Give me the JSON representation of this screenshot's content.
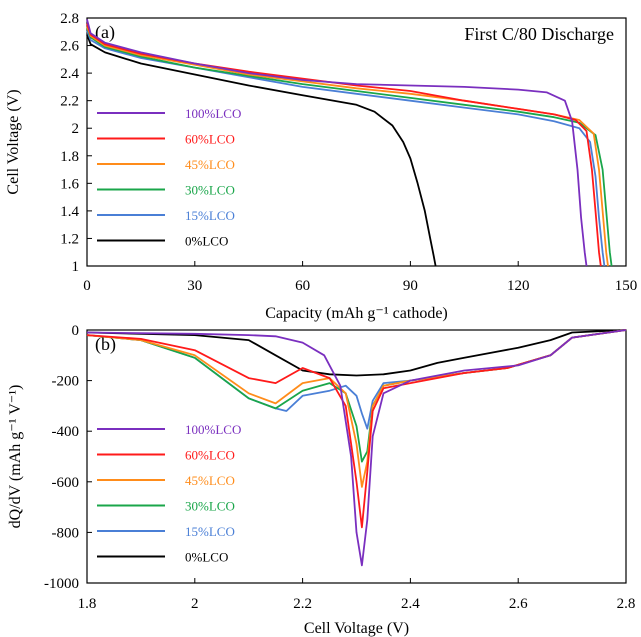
{
  "colors": {
    "100%LCO": "#7a2fbf",
    "60%LCO": "#ff1a1a",
    "45%LCO": "#ff8c1a",
    "30%LCO": "#1aa64a",
    "15%LCO": "#4a7fd6",
    "0%LCO": "#000000"
  },
  "chart_data": [
    {
      "type": "line",
      "panel_label": "(a)",
      "title": "First C/80 Discharge",
      "xlabel": "Capacity (mAh g⁻¹ cathode)",
      "ylabel": "Cell Voltage (V)",
      "xlim": [
        0,
        150
      ],
      "ylim": [
        1,
        2.8
      ],
      "xticks": [
        "0",
        "30",
        "60",
        "90",
        "120",
        "150"
      ],
      "yticks": [
        "1",
        "1.2",
        "1.4",
        "1.6",
        "1.8",
        "2",
        "2.2",
        "2.4",
        "2.6",
        "2.8"
      ],
      "grid": false,
      "legend_position": "left",
      "series": [
        {
          "name": "100%LCO",
          "x": [
            0,
            1,
            5,
            15,
            30,
            45,
            60,
            75,
            90,
            105,
            120,
            128,
            133,
            135,
            136.5,
            137.5,
            138.5,
            139
          ],
          "y": [
            2.79,
            2.69,
            2.62,
            2.55,
            2.47,
            2.4,
            2.35,
            2.32,
            2.31,
            2.3,
            2.28,
            2.26,
            2.2,
            2.05,
            1.7,
            1.35,
            1.1,
            1.0
          ]
        },
        {
          "name": "60%LCO",
          "x": [
            0,
            1,
            5,
            15,
            30,
            45,
            60,
            75,
            90,
            105,
            120,
            130,
            136,
            139,
            140.5,
            141.5,
            142.5,
            143
          ],
          "y": [
            2.76,
            2.68,
            2.61,
            2.54,
            2.47,
            2.41,
            2.36,
            2.31,
            2.27,
            2.2,
            2.14,
            2.1,
            2.06,
            1.98,
            1.7,
            1.4,
            1.1,
            1.0
          ]
        },
        {
          "name": "45%LCO",
          "x": [
            0,
            1,
            5,
            15,
            30,
            45,
            60,
            75,
            90,
            105,
            120,
            130,
            137,
            141,
            142.5,
            143.5,
            144.5,
            145
          ],
          "y": [
            2.74,
            2.67,
            2.6,
            2.53,
            2.46,
            2.39,
            2.34,
            2.29,
            2.25,
            2.2,
            2.14,
            2.1,
            2.06,
            1.96,
            1.7,
            1.4,
            1.1,
            1.0
          ]
        },
        {
          "name": "30%LCO",
          "x": [
            0,
            1,
            5,
            15,
            30,
            45,
            60,
            75,
            90,
            105,
            120,
            130,
            137,
            141.5,
            143.5,
            144.5,
            145.5,
            146
          ],
          "y": [
            2.73,
            2.66,
            2.59,
            2.52,
            2.44,
            2.38,
            2.32,
            2.27,
            2.22,
            2.17,
            2.12,
            2.08,
            2.04,
            1.95,
            1.7,
            1.4,
            1.1,
            1.0
          ]
        },
        {
          "name": "15%LCO",
          "x": [
            0,
            1,
            5,
            15,
            30,
            45,
            60,
            75,
            90,
            105,
            120,
            130,
            137,
            140,
            141.5,
            142.5,
            143.5,
            144
          ],
          "y": [
            2.71,
            2.64,
            2.58,
            2.51,
            2.44,
            2.37,
            2.3,
            2.25,
            2.2,
            2.15,
            2.1,
            2.05,
            2.0,
            1.9,
            1.65,
            1.35,
            1.1,
            1.0
          ]
        },
        {
          "name": "0%LCO",
          "x": [
            0,
            1,
            5,
            15,
            30,
            45,
            60,
            75,
            80,
            85,
            88,
            90,
            92,
            94,
            95.5,
            96.5,
            97
          ],
          "y": [
            2.68,
            2.61,
            2.55,
            2.47,
            2.39,
            2.31,
            2.24,
            2.17,
            2.12,
            2.02,
            1.9,
            1.78,
            1.6,
            1.4,
            1.2,
            1.07,
            1.0
          ]
        }
      ]
    },
    {
      "type": "line",
      "panel_label": "(b)",
      "xlabel": "Cell Voltage (V)",
      "ylabel": "dQ/dV (mAh g⁻¹ V⁻¹)",
      "xlim": [
        1.8,
        2.8
      ],
      "ylim": [
        -1000,
        0
      ],
      "xticks": [
        "1.8",
        "2",
        "2.2",
        "2.4",
        "2.6",
        "2.8"
      ],
      "yticks": [
        "0",
        "-200",
        "-400",
        "-600",
        "-800",
        "-1000"
      ],
      "grid": false,
      "legend_position": "left",
      "series": [
        {
          "name": "100%LCO",
          "x": [
            1.8,
            2.0,
            2.1,
            2.15,
            2.2,
            2.24,
            2.27,
            2.29,
            2.3,
            2.31,
            2.32,
            2.33,
            2.35,
            2.4,
            2.5,
            2.6,
            2.66,
            2.7,
            2.8
          ],
          "y": [
            -10,
            -15,
            -20,
            -25,
            -50,
            -100,
            -220,
            -500,
            -800,
            -930,
            -750,
            -420,
            -250,
            -200,
            -160,
            -140,
            -100,
            -30,
            0
          ]
        },
        {
          "name": "60%LCO",
          "x": [
            1.8,
            1.9,
            2.0,
            2.1,
            2.15,
            2.2,
            2.25,
            2.28,
            2.3,
            2.31,
            2.32,
            2.33,
            2.35,
            2.4,
            2.5,
            2.58,
            2.66,
            2.7,
            2.8
          ],
          "y": [
            -20,
            -35,
            -80,
            -190,
            -210,
            -150,
            -190,
            -300,
            -600,
            -780,
            -560,
            -320,
            -230,
            -210,
            -170,
            -150,
            -100,
            -30,
            0
          ]
        },
        {
          "name": "45%LCO",
          "x": [
            1.8,
            1.9,
            2.0,
            2.1,
            2.15,
            2.2,
            2.25,
            2.28,
            2.3,
            2.31,
            2.32,
            2.33,
            2.35,
            2.4,
            2.5,
            2.58,
            2.66,
            2.7,
            2.8
          ],
          "y": [
            -20,
            -40,
            -100,
            -250,
            -290,
            -210,
            -190,
            -250,
            -450,
            -620,
            -520,
            -300,
            -220,
            -200,
            -170,
            -150,
            -100,
            -30,
            0
          ]
        },
        {
          "name": "30%LCO",
          "x": [
            1.8,
            1.9,
            2.0,
            2.1,
            2.15,
            2.2,
            2.25,
            2.28,
            2.3,
            2.31,
            2.32,
            2.33,
            2.35,
            2.4,
            2.5,
            2.58,
            2.66,
            2.7,
            2.8
          ],
          "y": [
            -20,
            -40,
            -110,
            -270,
            -310,
            -240,
            -210,
            -250,
            -380,
            -520,
            -480,
            -300,
            -220,
            -200,
            -170,
            -150,
            -100,
            -30,
            0
          ]
        },
        {
          "name": "15%LCO",
          "x": [
            1.8,
            1.9,
            2.0,
            2.1,
            2.15,
            2.17,
            2.2,
            2.25,
            2.28,
            2.3,
            2.31,
            2.32,
            2.33,
            2.35,
            2.4,
            2.5,
            2.58,
            2.66,
            2.7,
            2.8
          ],
          "y": [
            -20,
            -40,
            -110,
            -270,
            -310,
            -320,
            -260,
            -240,
            -220,
            -260,
            -330,
            -390,
            -280,
            -210,
            -200,
            -170,
            -150,
            -100,
            -30,
            0
          ]
        },
        {
          "name": "0%LCO",
          "x": [
            1.8,
            2.0,
            2.1,
            2.15,
            2.2,
            2.25,
            2.3,
            2.35,
            2.4,
            2.45,
            2.5,
            2.55,
            2.6,
            2.66,
            2.7,
            2.8
          ],
          "y": [
            -10,
            -20,
            -40,
            -100,
            -160,
            -175,
            -180,
            -175,
            -160,
            -130,
            -110,
            -90,
            -70,
            -40,
            -10,
            0
          ]
        }
      ]
    }
  ]
}
